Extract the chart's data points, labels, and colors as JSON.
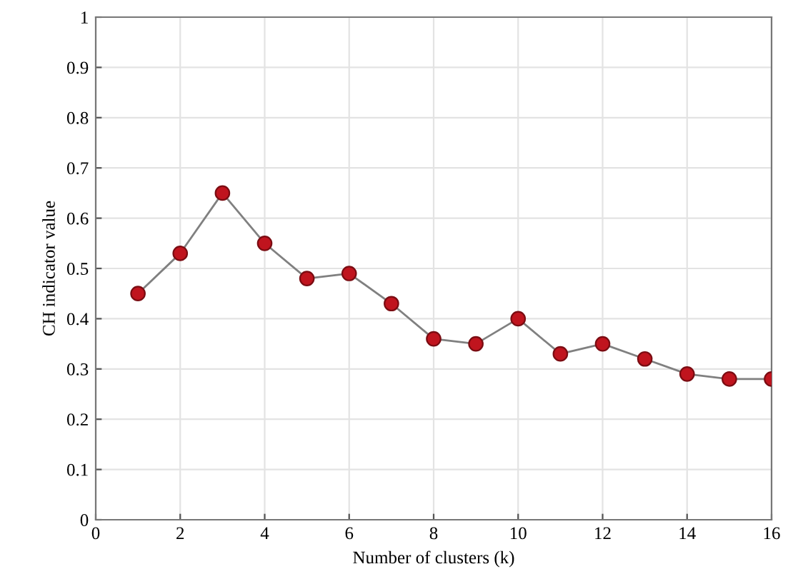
{
  "chart_data": {
    "type": "line",
    "xlabel": "Number of clusters (k)",
    "ylabel": "CH indicator value",
    "x": [
      1,
      2,
      3,
      4,
      5,
      6,
      7,
      8,
      9,
      10,
      11,
      12,
      13,
      14,
      15,
      16
    ],
    "series": [
      {
        "color": "#c0141e",
        "values": [
          0.45,
          0.53,
          0.65,
          0.55,
          0.48,
          0.49,
          0.43,
          0.36,
          0.35,
          0.4,
          0.33,
          0.35,
          0.32,
          0.29,
          0.28,
          0.28
        ]
      }
    ],
    "xlim": [
      0,
      16
    ],
    "xticks": [
      0,
      2,
      4,
      6,
      8,
      10,
      12,
      14,
      16
    ],
    "ylim": [
      0,
      1
    ],
    "yticks": [
      0,
      0.1,
      0.2,
      0.3,
      0.4,
      0.5,
      0.6,
      0.7,
      0.8,
      0.9,
      1
    ],
    "grid": true,
    "marker": "circle",
    "line_style": "solid"
  }
}
